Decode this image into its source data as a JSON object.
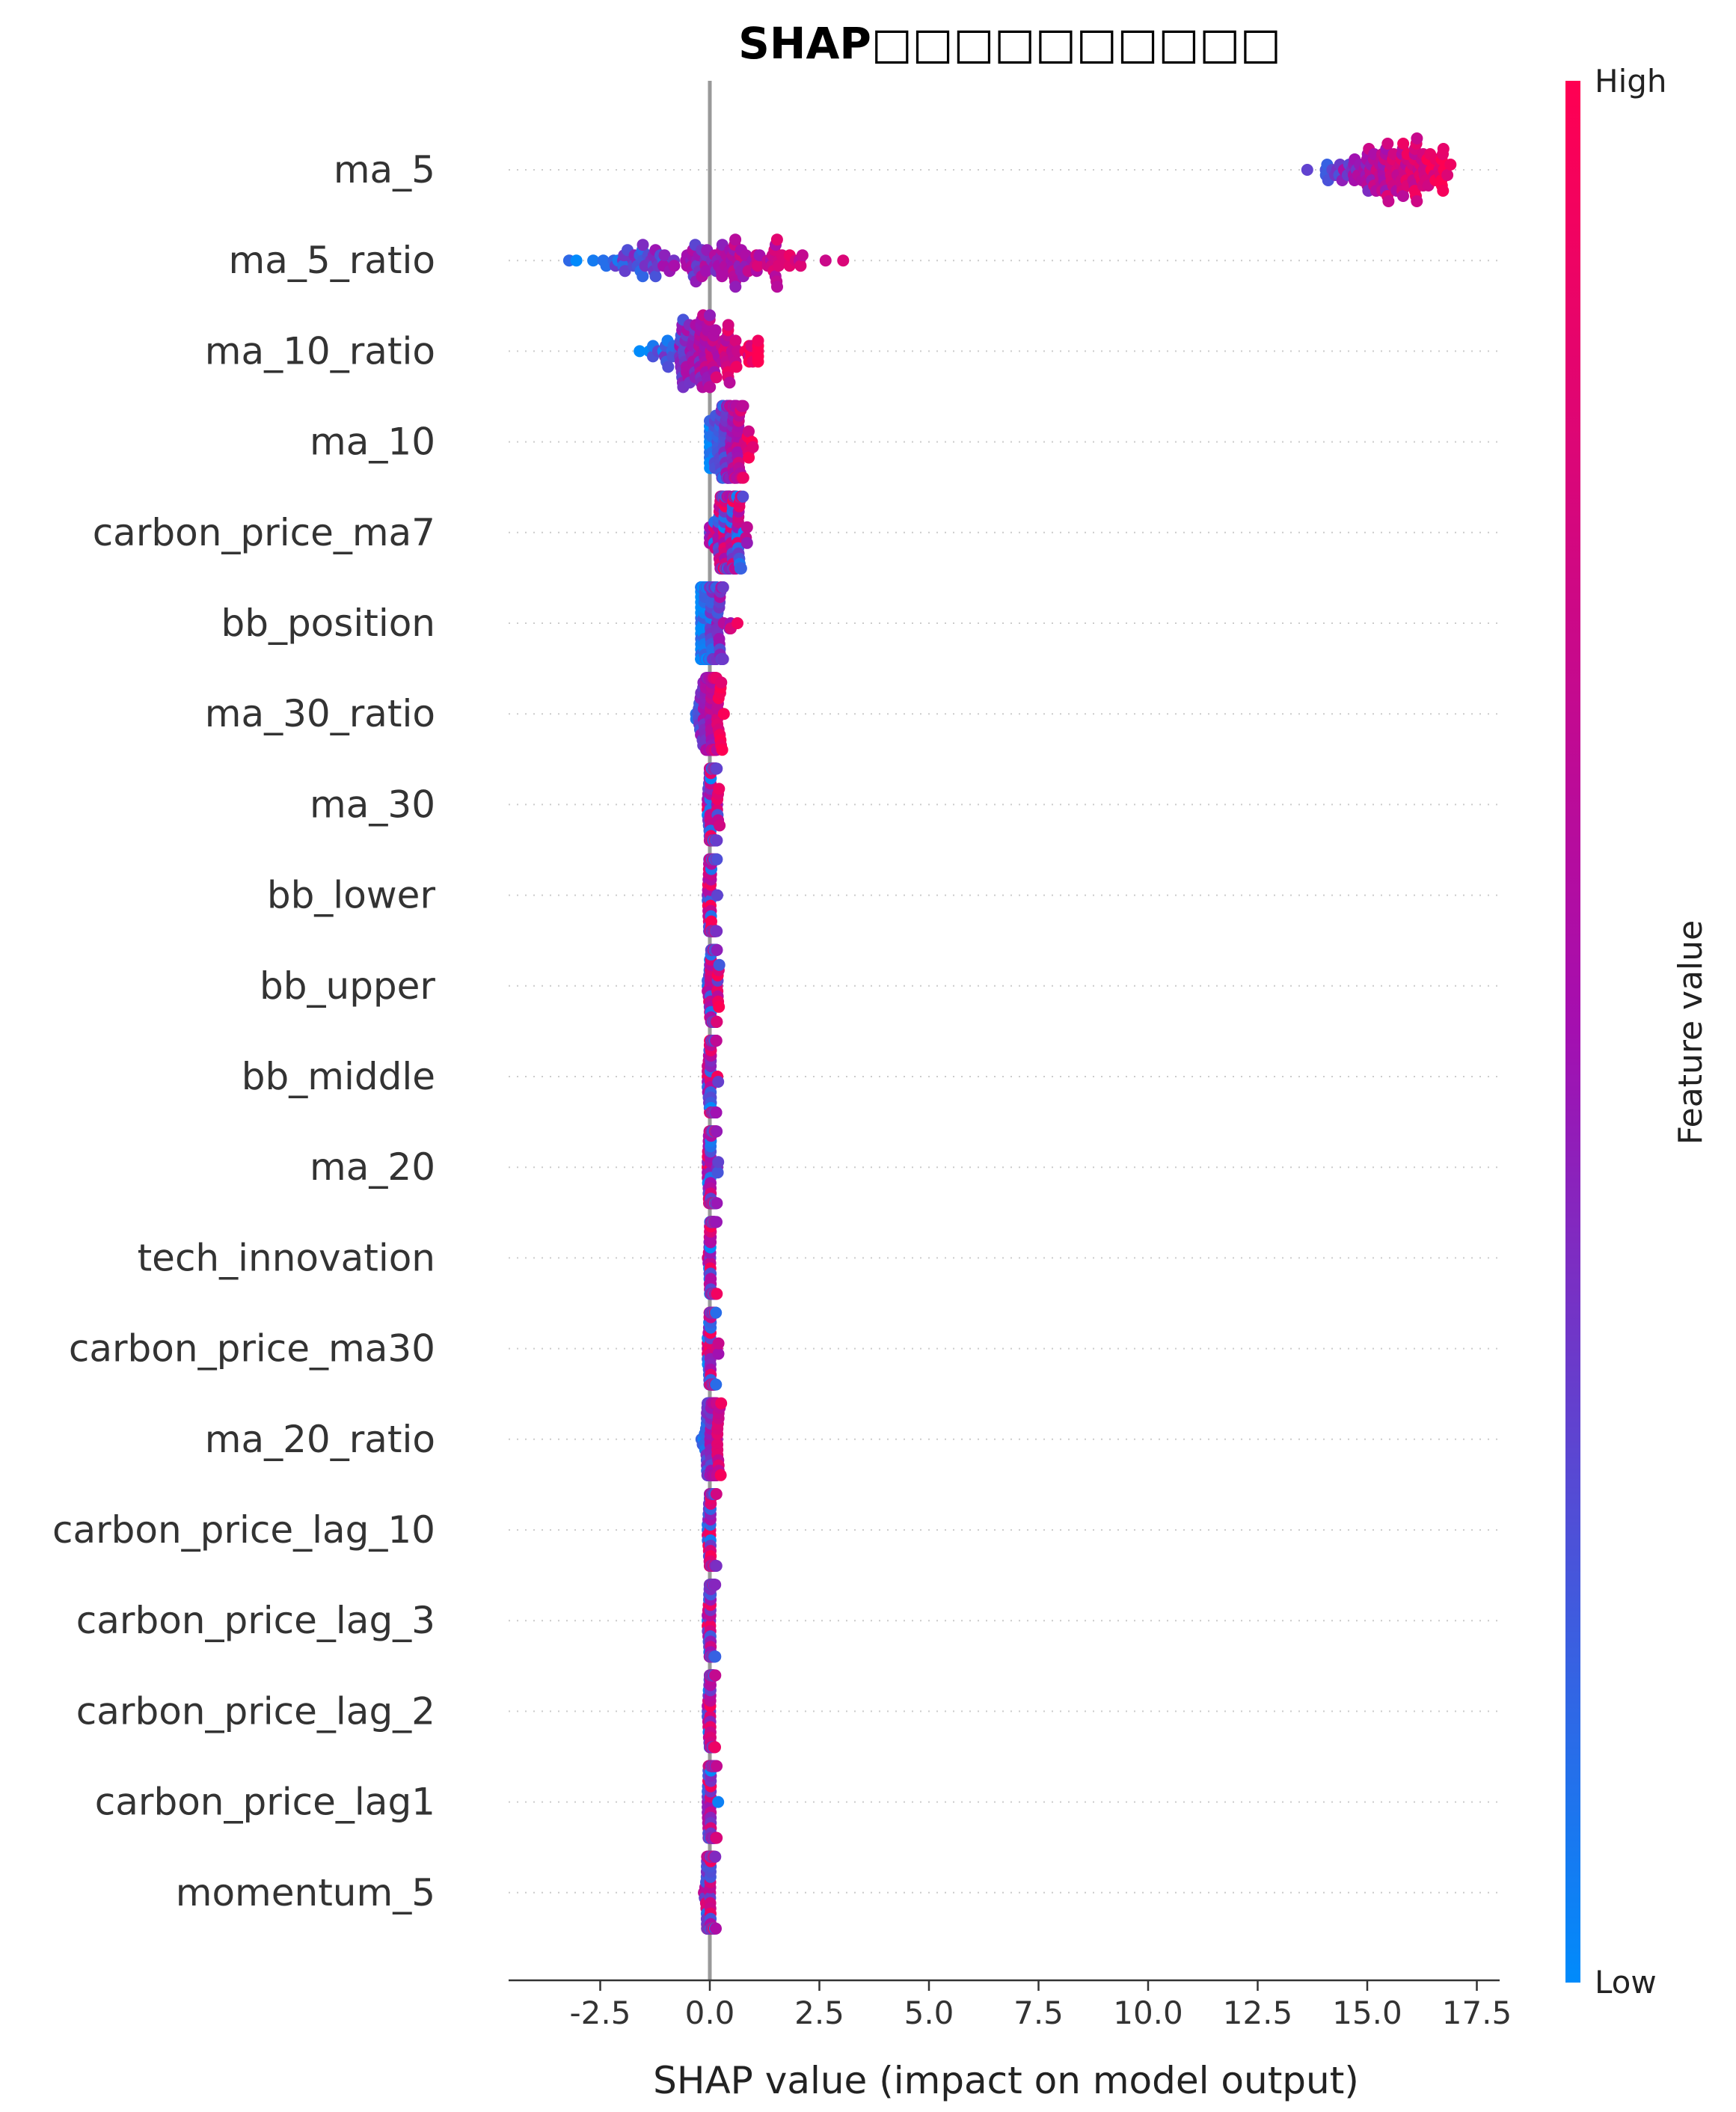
{
  "chart_data": {
    "type": "scatter",
    "subtype": "shap-beeswarm-summary",
    "title": "SHAP□□□□□□□□□□",
    "xlabel": "SHAP value (impact on model output)",
    "xlim": [
      -4.5,
      18.0
    ],
    "xticks": [
      -2.5,
      0.0,
      2.5,
      5.0,
      7.5,
      10.0,
      12.5,
      15.0,
      17.5
    ],
    "xtick_labels": [
      "-2.5",
      "0.0",
      "2.5",
      "5.0",
      "7.5",
      "10.0",
      "12.5",
      "15.0",
      "17.5"
    ],
    "zero_line": 0.0,
    "grid": "dotted row guide lines",
    "colorbar": {
      "label": "Feature value",
      "high_label": "High",
      "low_label": "Low",
      "low_color": "#008bfb",
      "mid_color": "#a40fb0",
      "high_color": "#ff0052",
      "placement": "right"
    },
    "features": [
      {
        "name": "ma_5",
        "shap_min": 12.8,
        "shap_max": 16.9,
        "center": 15.6,
        "spread": 0.75,
        "color_trend": 1
      },
      {
        "name": "ma_5_ratio",
        "shap_min": -3.5,
        "shap_max": 3.5,
        "center": 0.0,
        "spread": 1.4,
        "color_trend": 1
      },
      {
        "name": "ma_10_ratio",
        "shap_min": -1.6,
        "shap_max": 1.1,
        "center": -0.1,
        "spread": 0.6,
        "color_trend": 1
      },
      {
        "name": "ma_10",
        "shap_min": 0.0,
        "shap_max": 1.0,
        "center": 0.4,
        "spread": 0.25,
        "color_trend": 1
      },
      {
        "name": "carbon_price_ma7",
        "shap_min": 0.0,
        "shap_max": 0.85,
        "center": 0.4,
        "spread": 0.2,
        "color_trend": 0
      },
      {
        "name": "bb_position",
        "shap_min": -0.2,
        "shap_max": 0.9,
        "center": 0.0,
        "spread": 0.2,
        "color_trend": 1
      },
      {
        "name": "ma_30_ratio",
        "shap_min": -0.45,
        "shap_max": 0.35,
        "center": 0.0,
        "spread": 0.15,
        "color_trend": 1
      },
      {
        "name": "ma_30",
        "shap_min": -0.05,
        "shap_max": 0.25,
        "center": 0.08,
        "spread": 0.06,
        "color_trend": 0
      },
      {
        "name": "bb_lower",
        "shap_min": -0.05,
        "shap_max": 0.2,
        "center": 0.06,
        "spread": 0.05,
        "color_trend": 0
      },
      {
        "name": "bb_upper",
        "shap_min": -0.05,
        "shap_max": 0.3,
        "center": 0.08,
        "spread": 0.06,
        "color_trend": 0
      },
      {
        "name": "bb_middle",
        "shap_min": -0.05,
        "shap_max": 0.25,
        "center": 0.06,
        "spread": 0.05,
        "color_trend": 0
      },
      {
        "name": "ma_20",
        "shap_min": -0.05,
        "shap_max": 0.25,
        "center": 0.06,
        "spread": 0.05,
        "color_trend": 0
      },
      {
        "name": "tech_innovation",
        "shap_min": -0.05,
        "shap_max": 0.2,
        "center": 0.05,
        "spread": 0.04,
        "color_trend": 0
      },
      {
        "name": "carbon_price_ma30",
        "shap_min": -0.05,
        "shap_max": 0.25,
        "center": 0.05,
        "spread": 0.05,
        "color_trend": 0
      },
      {
        "name": "ma_20_ratio",
        "shap_min": -0.2,
        "shap_max": 0.35,
        "center": 0.05,
        "spread": 0.08,
        "color_trend": 1
      },
      {
        "name": "carbon_price_lag_10",
        "shap_min": -0.05,
        "shap_max": 0.15,
        "center": 0.04,
        "spread": 0.04,
        "color_trend": 0
      },
      {
        "name": "carbon_price_lag_3",
        "shap_min": -0.05,
        "shap_max": 0.15,
        "center": 0.04,
        "spread": 0.04,
        "color_trend": 0
      },
      {
        "name": "carbon_price_lag_2",
        "shap_min": -0.05,
        "shap_max": 0.15,
        "center": 0.04,
        "spread": 0.04,
        "color_trend": 0
      },
      {
        "name": "carbon_price_lag1",
        "shap_min": -0.05,
        "shap_max": 0.2,
        "center": 0.05,
        "spread": 0.05,
        "color_trend": 0
      },
      {
        "name": "momentum_5",
        "shap_min": -0.15,
        "shap_max": 0.15,
        "center": 0.0,
        "spread": 0.05,
        "color_trend": 0
      }
    ]
  }
}
